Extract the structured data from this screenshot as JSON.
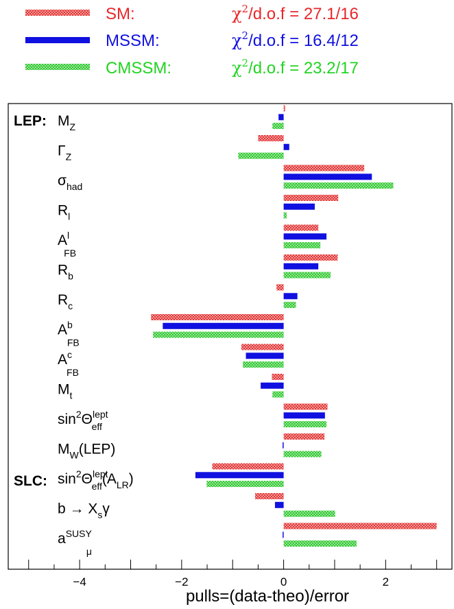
{
  "legend": [
    {
      "name": "SM:",
      "chi2": "/d.o.f = 27.1/16",
      "color": "#e8262a",
      "pattern": "hatch-red"
    },
    {
      "name": "MSSM:",
      "chi2": "/d.o.f = 16.4/12",
      "color": "#1010e0",
      "pattern": "solid"
    },
    {
      "name": "CMSSM:",
      "chi2": "/d.o.f = 23.2/17",
      "color": "#22d422",
      "pattern": "hatch-green"
    }
  ],
  "chi_symbol": "χ",
  "chi_sup": "2",
  "groups": {
    "lep": "LEP:",
    "slc": "SLC:"
  },
  "chart_data": {
    "type": "bar",
    "orientation": "horizontal",
    "xlabel": "pulls=(data-theo)/error",
    "xlim": [
      -5.4,
      3.3
    ],
    "xticks": [
      -4,
      -2,
      0,
      2
    ],
    "xtick_labels": [
      "−4",
      "−2",
      "0",
      "2"
    ],
    "categories": [
      {
        "main": "M",
        "sub": "Z"
      },
      {
        "main": "Γ",
        "sub": "Z"
      },
      {
        "main": "σ",
        "sub": "had"
      },
      {
        "main": "R",
        "sub": "l"
      },
      {
        "main": "A",
        "sup": "l",
        "sub": "FB"
      },
      {
        "main": "R",
        "sub": "b"
      },
      {
        "main": "R",
        "sub": "c"
      },
      {
        "main": "A",
        "sup": "b",
        "sub": "FB"
      },
      {
        "main": "A",
        "sup": "c",
        "sub": "FB"
      },
      {
        "main": "M",
        "sub": "t"
      },
      {
        "main": "sin",
        "sup": "2",
        "main2": "Θ",
        "sup2": "lept",
        "sub2": "eff"
      },
      {
        "main": "M",
        "sub": "W",
        "tail": "(LEP)"
      },
      {
        "main": "sin",
        "sup": "2",
        "main2": "Θ",
        "sup2": "lept",
        "sub2": "eff",
        "tail": "(A",
        "tailsub": "LR",
        "tail2": ")"
      },
      {
        "main": "b → X",
        "sub": "s",
        "tail": "γ"
      },
      {
        "main": "a",
        "sub": "μ",
        "sup": "SUSY"
      }
    ],
    "series": [
      {
        "name": "SM",
        "values": [
          0.03,
          -0.5,
          1.58,
          1.07,
          0.68,
          1.06,
          -0.14,
          -2.6,
          -0.83,
          -0.23,
          0.86,
          0.8,
          -1.4,
          -0.56,
          3.0
        ]
      },
      {
        "name": "MSSM",
        "values": [
          -0.1,
          0.11,
          1.73,
          0.61,
          0.84,
          0.68,
          0.27,
          -2.37,
          -0.74,
          -0.45,
          0.81,
          -0.02,
          -1.73,
          -0.17,
          -0.02
        ]
      },
      {
        "name": "CMSSM",
        "values": [
          -0.22,
          -0.89,
          2.15,
          0.06,
          0.72,
          0.92,
          0.24,
          -2.56,
          -0.8,
          -0.22,
          0.84,
          0.74,
          -1.51,
          1.01,
          1.43
        ]
      }
    ]
  }
}
